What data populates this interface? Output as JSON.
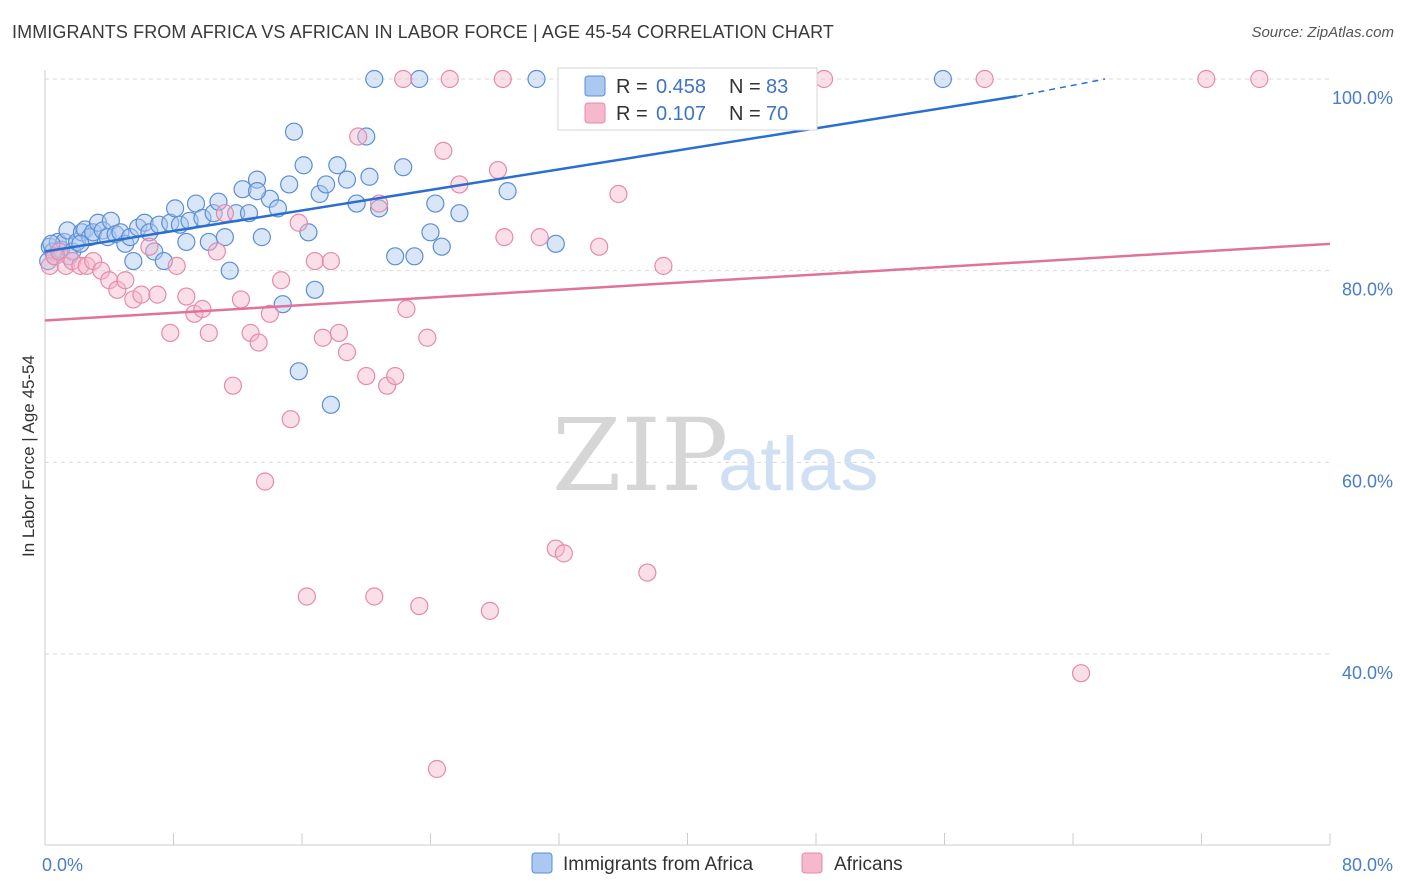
{
  "title": "IMMIGRANTS FROM AFRICA VS AFRICAN IN LABOR FORCE | AGE 45-54 CORRELATION CHART",
  "source": "Source: ZipAtlas.com",
  "watermark": {
    "zip": "ZIP",
    "atlas": "atlas"
  },
  "colors": {
    "blue_fill": "#aac8f0",
    "blue_stroke": "#5b8ed6",
    "blue_line": "#2a6fd0",
    "pink_fill": "#f5b8cc",
    "pink_stroke": "#e58aab",
    "pink_line": "#e0739c",
    "grid": "#d9d9d9",
    "tick_text": "#4a7cc9"
  },
  "legend": {
    "rows": [
      {
        "r_label": "R =",
        "r_value": "0.458",
        "n_label": "N =",
        "n_value": "83",
        "series": "blue"
      },
      {
        "r_label": "R =",
        "r_value": "0.107",
        "n_label": "N =",
        "n_value": "70",
        "series": "pink"
      }
    ]
  },
  "chart_data": {
    "type": "scatter",
    "xlabel": "",
    "ylabel": "In Labor Force | Age 45-54",
    "xlim": [
      0,
      80
    ],
    "ylim": [
      20,
      103
    ],
    "x_ticks_labeled": [
      {
        "value": 0,
        "label": "0.0%"
      },
      {
        "value": 80,
        "label": "80.0%"
      }
    ],
    "x_ticks_minor": [
      8,
      16,
      24,
      32,
      40,
      48,
      56,
      64,
      72
    ],
    "y_ticks": [
      {
        "value": 100,
        "label": "100.0%"
      },
      {
        "value": 80,
        "label": "80.0%"
      },
      {
        "value": 60,
        "label": "60.0%"
      },
      {
        "value": 40,
        "label": "40.0%"
      }
    ],
    "grid": "horizontal dashed",
    "legend_position": "top-center",
    "series": [
      {
        "name": "Immigrants from Africa",
        "color": "blue",
        "trend": {
          "x": [
            0,
            60.5
          ],
          "y": [
            82.0,
            98.2
          ],
          "dashed_to": [
            66,
            100.0
          ]
        },
        "points": [
          [
            0.2,
            81.0
          ],
          [
            0.3,
            82.5
          ],
          [
            0.5,
            82.0
          ],
          [
            0.6,
            81.5
          ],
          [
            0.8,
            83.0
          ],
          [
            1.0,
            82.2
          ],
          [
            1.2,
            83.0
          ],
          [
            1.4,
            84.2
          ],
          [
            1.5,
            81.5
          ],
          [
            1.7,
            82.0
          ],
          [
            2.0,
            83.0
          ],
          [
            2.3,
            84.0
          ],
          [
            2.5,
            84.3
          ],
          [
            2.8,
            83.5
          ],
          [
            3.0,
            84.0
          ],
          [
            3.3,
            85.0
          ],
          [
            3.6,
            84.2
          ],
          [
            3.9,
            83.5
          ],
          [
            4.1,
            85.2
          ],
          [
            4.4,
            83.8
          ],
          [
            4.7,
            84.0
          ],
          [
            5.0,
            82.8
          ],
          [
            5.3,
            83.5
          ],
          [
            5.5,
            81.0
          ],
          [
            5.8,
            84.5
          ],
          [
            6.2,
            85.0
          ],
          [
            6.5,
            84.0
          ],
          [
            6.8,
            82.0
          ],
          [
            7.1,
            84.8
          ],
          [
            7.4,
            81.0
          ],
          [
            7.8,
            85.0
          ],
          [
            8.1,
            86.5
          ],
          [
            8.4,
            84.8
          ],
          [
            8.8,
            83.0
          ],
          [
            9.0,
            85.2
          ],
          [
            9.4,
            87.0
          ],
          [
            9.8,
            85.5
          ],
          [
            10.2,
            83.0
          ],
          [
            10.5,
            86.0
          ],
          [
            10.8,
            87.2
          ],
          [
            11.2,
            83.5
          ],
          [
            11.5,
            80.0
          ],
          [
            11.9,
            86.0
          ],
          [
            12.3,
            88.5
          ],
          [
            12.7,
            86.0
          ],
          [
            13.2,
            89.5
          ],
          [
            13.5,
            83.5
          ],
          [
            14.0,
            87.5
          ],
          [
            14.5,
            86.5
          ],
          [
            14.8,
            76.5
          ],
          [
            15.2,
            89.0
          ],
          [
            15.5,
            94.5
          ],
          [
            15.8,
            69.5
          ],
          [
            16.1,
            91.0
          ],
          [
            16.4,
            84.0
          ],
          [
            16.8,
            78.0
          ],
          [
            17.1,
            88.0
          ],
          [
            17.5,
            89.0
          ],
          [
            17.8,
            66.0
          ],
          [
            18.2,
            91.0
          ],
          [
            18.8,
            89.5
          ],
          [
            19.4,
            87.0
          ],
          [
            20.2,
            89.8
          ],
          [
            20.8,
            86.5
          ],
          [
            21.8,
            81.5
          ],
          [
            22.3,
            90.8
          ],
          [
            23.0,
            81.5
          ],
          [
            24.0,
            84.0
          ],
          [
            24.3,
            87.0
          ],
          [
            24.7,
            82.5
          ],
          [
            25.8,
            86.0
          ],
          [
            28.8,
            88.3
          ],
          [
            31.8,
            82.8
          ],
          [
            20.0,
            94.0
          ],
          [
            20.5,
            100
          ],
          [
            23.3,
            100
          ],
          [
            30.6,
            100
          ],
          [
            33.0,
            100
          ],
          [
            55.9,
            100
          ],
          [
            32.5,
            97.8
          ],
          [
            13.2,
            88.3
          ],
          [
            0.4,
            82.8
          ],
          [
            2.2,
            82.8
          ]
        ]
      },
      {
        "name": "Africans",
        "color": "pink",
        "trend": {
          "x": [
            0,
            80
          ],
          "y": [
            74.8,
            82.8
          ]
        },
        "points": [
          [
            0.3,
            80.5
          ],
          [
            0.6,
            81.5
          ],
          [
            0.9,
            82.0
          ],
          [
            1.3,
            80.5
          ],
          [
            1.7,
            81.0
          ],
          [
            2.2,
            80.5
          ],
          [
            2.6,
            80.5
          ],
          [
            3.0,
            81.0
          ],
          [
            3.5,
            80.0
          ],
          [
            4.0,
            79.0
          ],
          [
            4.5,
            78.0
          ],
          [
            5.0,
            79.0
          ],
          [
            5.5,
            77.0
          ],
          [
            6.0,
            77.5
          ],
          [
            6.5,
            82.5
          ],
          [
            7.0,
            77.5
          ],
          [
            7.8,
            73.5
          ],
          [
            8.2,
            80.5
          ],
          [
            8.8,
            77.3
          ],
          [
            9.3,
            75.5
          ],
          [
            9.8,
            76.0
          ],
          [
            10.2,
            73.5
          ],
          [
            10.7,
            82.0
          ],
          [
            11.2,
            86.0
          ],
          [
            11.7,
            68.0
          ],
          [
            12.2,
            77.0
          ],
          [
            12.8,
            73.5
          ],
          [
            13.3,
            72.5
          ],
          [
            13.7,
            58.0
          ],
          [
            14.0,
            75.5
          ],
          [
            14.7,
            79.0
          ],
          [
            15.3,
            64.5
          ],
          [
            15.8,
            85.0
          ],
          [
            16.3,
            46.0
          ],
          [
            16.8,
            81.0
          ],
          [
            17.3,
            73.0
          ],
          [
            17.8,
            81.0
          ],
          [
            18.3,
            73.5
          ],
          [
            18.8,
            71.5
          ],
          [
            19.5,
            94.0
          ],
          [
            20.0,
            69.0
          ],
          [
            20.5,
            46.0
          ],
          [
            20.8,
            87.0
          ],
          [
            21.3,
            68.0
          ],
          [
            21.8,
            69.0
          ],
          [
            22.5,
            76.0
          ],
          [
            23.3,
            45.0
          ],
          [
            23.8,
            73.0
          ],
          [
            24.4,
            28.0
          ],
          [
            24.8,
            92.5
          ],
          [
            25.8,
            89.0
          ],
          [
            27.7,
            44.5
          ],
          [
            28.2,
            90.5
          ],
          [
            28.6,
            83.5
          ],
          [
            30.8,
            83.5
          ],
          [
            31.8,
            51.0
          ],
          [
            32.3,
            50.5
          ],
          [
            34.5,
            82.5
          ],
          [
            35.7,
            88.0
          ],
          [
            37.5,
            48.5
          ],
          [
            38.5,
            80.5
          ],
          [
            64.5,
            38.0
          ],
          [
            22.3,
            100
          ],
          [
            25.2,
            100
          ],
          [
            28.5,
            100
          ],
          [
            37.5,
            100
          ],
          [
            48.5,
            100
          ],
          [
            58.5,
            100
          ],
          [
            72.3,
            100
          ],
          [
            75.6,
            100
          ]
        ]
      }
    ]
  },
  "bottom_legend": [
    {
      "label": "Immigrants from Africa",
      "color": "blue"
    },
    {
      "label": "Africans",
      "color": "pink"
    }
  ]
}
